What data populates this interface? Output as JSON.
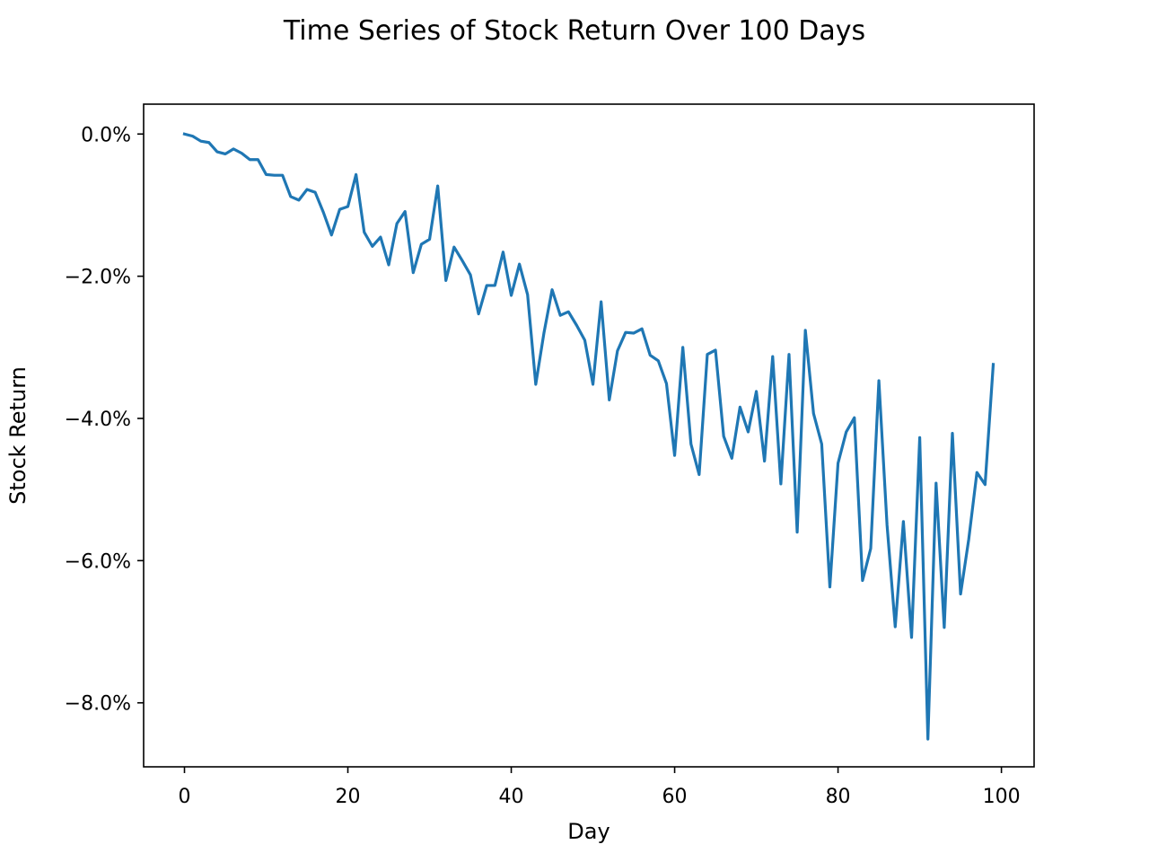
{
  "chart_data": {
    "type": "line",
    "title": "Time Series of Stock Return Over 100 Days",
    "xlabel": "Day",
    "ylabel": "Stock Return",
    "xlim": [
      -5,
      104
    ],
    "ylim": [
      -8.9,
      0.42
    ],
    "y_unit": "%",
    "grid": false,
    "legend": "none",
    "x_ticks": [
      {
        "value": 0,
        "label": "0"
      },
      {
        "value": 20,
        "label": "20"
      },
      {
        "value": 40,
        "label": "40"
      },
      {
        "value": 60,
        "label": "60"
      },
      {
        "value": 80,
        "label": "80"
      },
      {
        "value": 100,
        "label": "100"
      }
    ],
    "y_ticks": [
      {
        "value": 0,
        "label": "0.0%"
      },
      {
        "value": -2,
        "label": "−2.0%"
      },
      {
        "value": -4,
        "label": "−4.0%"
      },
      {
        "value": -6,
        "label": "−6.0%"
      },
      {
        "value": -8,
        "label": "−8.0%"
      }
    ],
    "series": [
      {
        "color": "#1f77b4",
        "x": [
          0,
          1,
          2,
          3,
          4,
          5,
          6,
          7,
          8,
          9,
          10,
          11,
          12,
          13,
          14,
          15,
          16,
          17,
          18,
          19,
          20,
          21,
          22,
          23,
          24,
          25,
          26,
          27,
          28,
          29,
          30,
          31,
          32,
          33,
          34,
          35,
          36,
          37,
          38,
          39,
          40,
          41,
          42,
          43,
          44,
          45,
          46,
          47,
          48,
          49,
          50,
          51,
          52,
          53,
          54,
          55,
          56,
          57,
          58,
          59,
          60,
          61,
          62,
          63,
          64,
          65,
          66,
          67,
          68,
          69,
          70,
          71,
          72,
          73,
          74,
          75,
          76,
          77,
          78,
          79,
          80,
          81,
          82,
          83,
          84,
          85,
          86,
          87,
          88,
          89,
          90,
          91,
          92,
          93,
          94,
          95,
          96,
          97,
          98,
          99
        ],
        "values": [
          0.0,
          -0.03,
          -0.1,
          -0.12,
          -0.25,
          -0.28,
          -0.21,
          -0.27,
          -0.36,
          -0.36,
          -0.57,
          -0.58,
          -0.58,
          -0.88,
          -0.93,
          -0.78,
          -0.82,
          -1.1,
          -1.42,
          -1.06,
          -1.02,
          -0.57,
          -1.38,
          -1.58,
          -1.45,
          -1.84,
          -1.26,
          -1.09,
          -1.95,
          -1.55,
          -1.48,
          -0.73,
          -2.06,
          -1.59,
          -1.78,
          -1.98,
          -2.53,
          -2.13,
          -2.13,
          -1.66,
          -2.27,
          -1.83,
          -2.26,
          -3.52,
          -2.8,
          -2.19,
          -2.55,
          -2.5,
          -2.69,
          -2.9,
          -3.52,
          -2.36,
          -3.74,
          -3.05,
          -2.79,
          -2.8,
          -2.74,
          -3.11,
          -3.19,
          -3.51,
          -4.52,
          -3.0,
          -4.36,
          -4.79,
          -3.1,
          -3.04,
          -4.25,
          -4.56,
          -3.84,
          -4.19,
          -3.62,
          -4.6,
          -3.13,
          -4.92,
          -3.1,
          -5.6,
          -2.76,
          -3.93,
          -4.36,
          -6.37,
          -4.63,
          -4.19,
          -3.99,
          -6.28,
          -5.83,
          -3.47,
          -5.5,
          -6.93,
          -5.45,
          -7.08,
          -4.27,
          -8.51,
          -4.91,
          -6.94,
          -4.21,
          -6.47,
          -5.7,
          -4.76,
          -4.93,
          -3.24
        ]
      }
    ]
  }
}
